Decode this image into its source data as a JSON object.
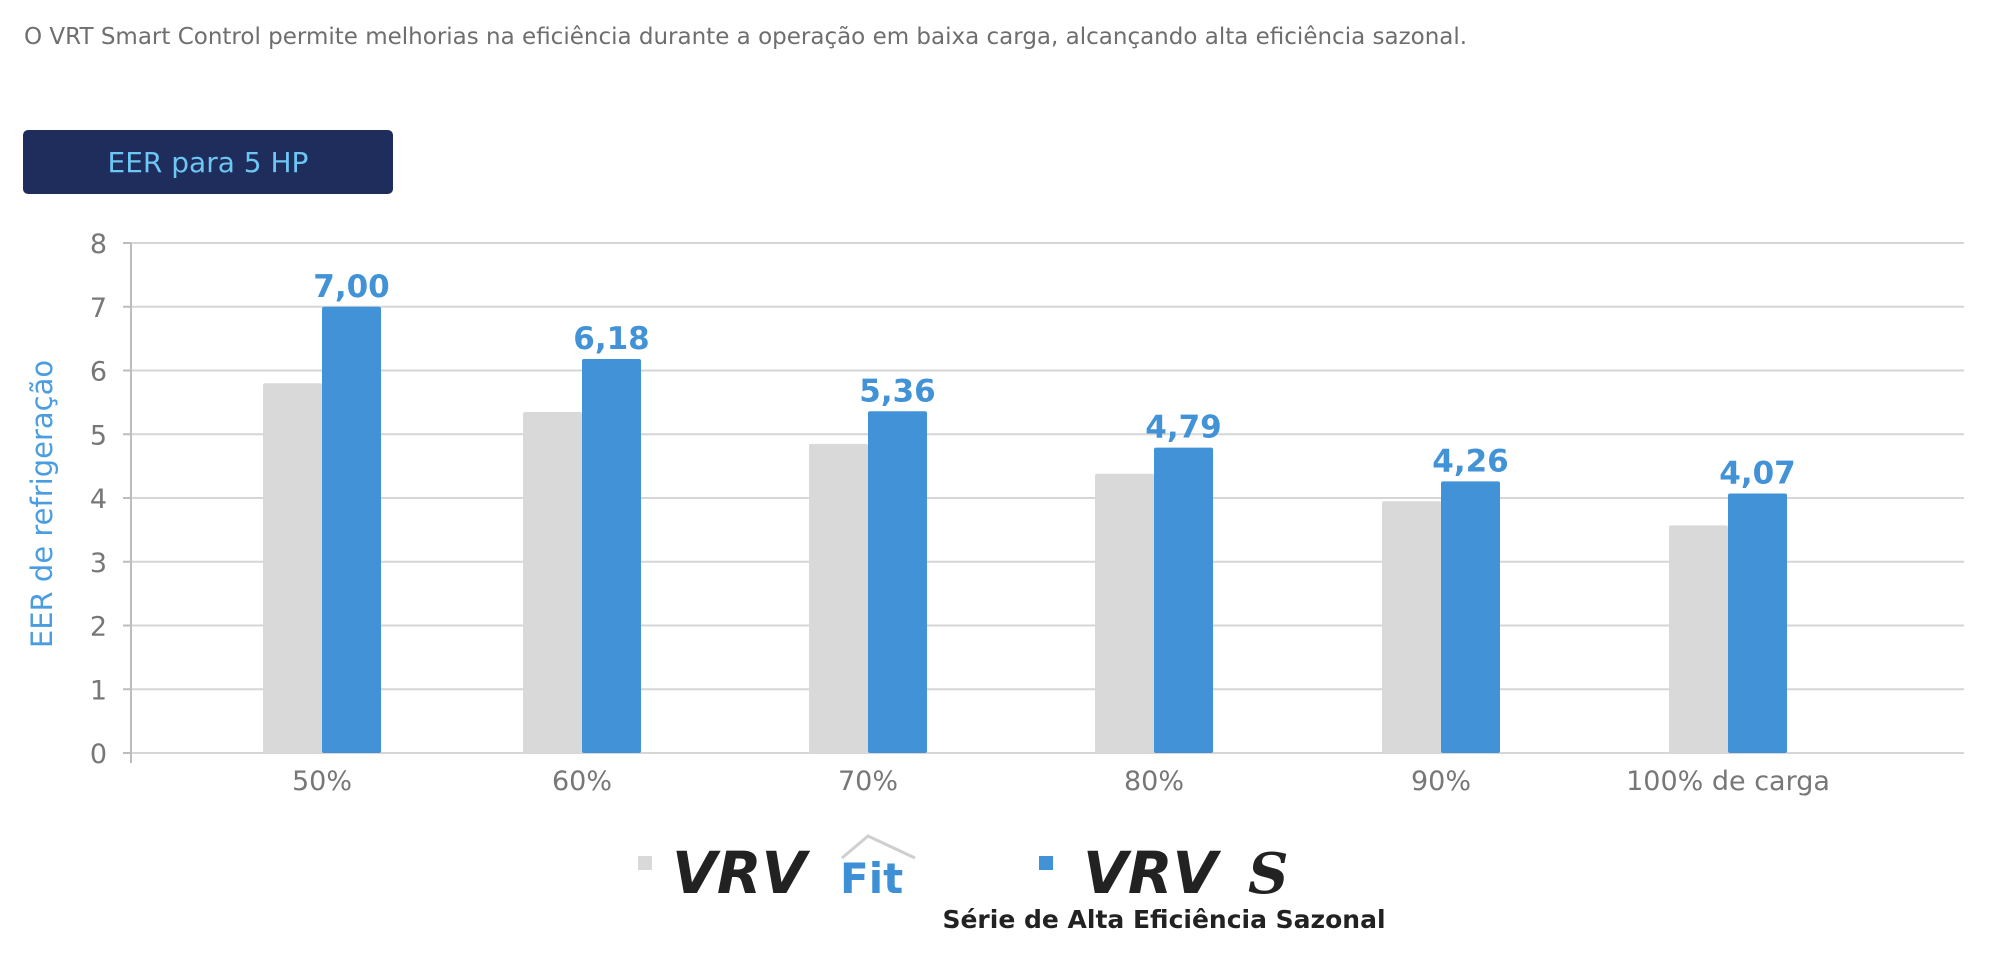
{
  "intro_text": "O VRT Smart Control permite melhorias na eficiência durante a operação em baixa carga, alcançando alta eficiência sazonal.",
  "badge_label": "EER para 5 HP",
  "colors": {
    "gray_series": "#d9d9d9",
    "blue_series": "#4192d6",
    "axis_label": "#4a9de0",
    "badge_bg": "#1e2d5c",
    "badge_text": "#6ec6f2"
  },
  "chart_data": {
    "type": "bar",
    "ylabel": "EER de refrigeração",
    "xlabel": "",
    "ylim": [
      0,
      8
    ],
    "yticks": [
      "0",
      "1",
      "2",
      "3",
      "4",
      "5",
      "6",
      "7",
      "8"
    ],
    "grid": true,
    "categories": [
      "50%",
      "60%",
      "70%",
      "80%",
      "90%",
      "100% de carga"
    ],
    "series": [
      {
        "name": "VRV Fit",
        "values": [
          5.8,
          5.35,
          4.85,
          4.38,
          3.95,
          3.57
        ]
      },
      {
        "name": "VRV S",
        "values": [
          7.0,
          6.18,
          5.36,
          4.79,
          4.26,
          4.07
        ],
        "data_labels": [
          "7,00",
          "6,18",
          "5,36",
          "4,79",
          "4,26",
          "4,07"
        ]
      }
    ],
    "legend": {
      "placement": "bottom-center",
      "items": [
        {
          "logo": "VRV",
          "suffix": "Fit",
          "icon": "gray-square"
        },
        {
          "logo": "VRV",
          "suffix": "S",
          "icon": "blue-square",
          "subtitle": "Série de Alta Eficiência Sazonal"
        }
      ]
    }
  }
}
